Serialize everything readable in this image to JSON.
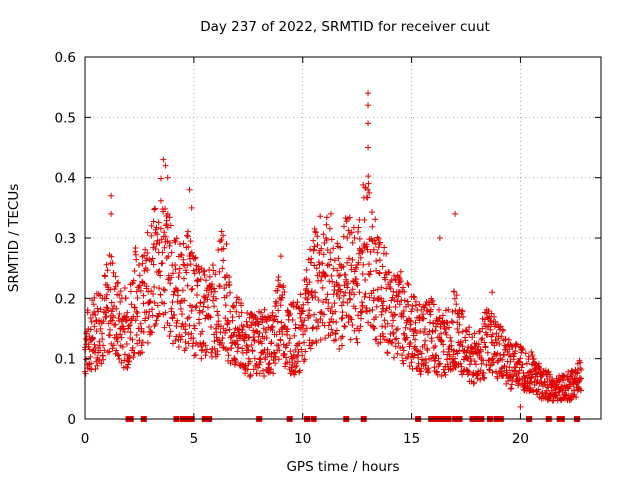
{
  "chart_data": {
    "type": "scatter",
    "title": "Day 237 of 2022, SRMTID for receiver cuut",
    "xlabel": "GPS time / hours",
    "ylabel": "SRMTID / TECUs",
    "xlim": [
      0,
      23.7
    ],
    "ylim": [
      0,
      0.6
    ],
    "x_ticks": [
      0,
      5,
      10,
      15,
      20
    ],
    "x_tick_labels": [
      "0",
      "5",
      "10",
      "15",
      "20"
    ],
    "y_ticks": [
      0,
      0.1,
      0.2,
      0.3,
      0.4,
      0.5,
      0.6
    ],
    "y_tick_labels": [
      "0",
      "0.1",
      "0.2",
      "0.3",
      "0.4",
      "0.5",
      "0.6"
    ],
    "grid": true,
    "marker": "+",
    "color": "#e00000",
    "series": [
      {
        "name": "SRMTID",
        "envelope": {
          "x": [
            0,
            0.5,
            1.0,
            1.2,
            1.5,
            2.0,
            2.3,
            2.7,
            3.0,
            3.3,
            3.5,
            3.7,
            4.0,
            4.5,
            4.8,
            5.0,
            5.5,
            6.0,
            6.3,
            6.7,
            7.0,
            7.5,
            8.0,
            8.5,
            9.0,
            9.3,
            9.7,
            10.0,
            10.5,
            11.0,
            11.3,
            11.7,
            12.0,
            12.5,
            12.9,
            13.1,
            13.5,
            14.0,
            14.5,
            15.0,
            15.5,
            16.0,
            16.5,
            17.0,
            17.5,
            18.0,
            18.5,
            19.0,
            19.5,
            20.0,
            20.5,
            21.0,
            21.5,
            22.0,
            22.5,
            22.8
          ],
          "y": [
            0.12,
            0.15,
            0.18,
            0.2,
            0.16,
            0.15,
            0.2,
            0.19,
            0.23,
            0.25,
            0.28,
            0.26,
            0.22,
            0.2,
            0.22,
            0.19,
            0.17,
            0.18,
            0.22,
            0.15,
            0.14,
            0.12,
            0.13,
            0.12,
            0.18,
            0.14,
            0.13,
            0.15,
            0.22,
            0.24,
            0.22,
            0.2,
            0.24,
            0.22,
            0.3,
            0.26,
            0.22,
            0.18,
            0.17,
            0.15,
            0.13,
            0.14,
            0.12,
            0.15,
            0.11,
            0.1,
            0.13,
            0.11,
            0.09,
            0.09,
            0.08,
            0.06,
            0.05,
            0.05,
            0.06,
            0.08
          ]
        },
        "outliers": [
          {
            "x": 1.2,
            "y": 0.37
          },
          {
            "x": 1.2,
            "y": 0.34
          },
          {
            "x": 3.6,
            "y": 0.43
          },
          {
            "x": 3.7,
            "y": 0.42
          },
          {
            "x": 3.8,
            "y": 0.4
          },
          {
            "x": 4.8,
            "y": 0.38
          },
          {
            "x": 4.9,
            "y": 0.35
          },
          {
            "x": 13.0,
            "y": 0.54
          },
          {
            "x": 13.0,
            "y": 0.52
          },
          {
            "x": 13.0,
            "y": 0.49
          },
          {
            "x": 13.0,
            "y": 0.45
          },
          {
            "x": 13.0,
            "y": 0.38
          },
          {
            "x": 12.6,
            "y": 0.33
          },
          {
            "x": 17.0,
            "y": 0.34
          },
          {
            "x": 16.3,
            "y": 0.3
          },
          {
            "x": 11.3,
            "y": 0.34
          },
          {
            "x": 6.5,
            "y": 0.29
          },
          {
            "x": 9.0,
            "y": 0.27
          },
          {
            "x": 18.7,
            "y": 0.21
          },
          {
            "x": 20.0,
            "y": 0.02
          }
        ],
        "zeros_x": [
          2.0,
          2.1,
          2.7,
          4.2,
          4.5,
          4.7,
          4.9,
          5.5,
          5.6,
          5.7,
          8.0,
          9.4,
          10.2,
          10.5,
          12.0,
          12.8,
          15.3,
          15.9,
          16.1,
          16.3,
          16.5,
          16.7,
          17.0,
          17.2,
          17.8,
          18.0,
          18.2,
          18.6,
          18.9,
          19.1,
          20.4,
          21.3,
          21.8,
          21.9,
          22.6
        ]
      }
    ]
  }
}
